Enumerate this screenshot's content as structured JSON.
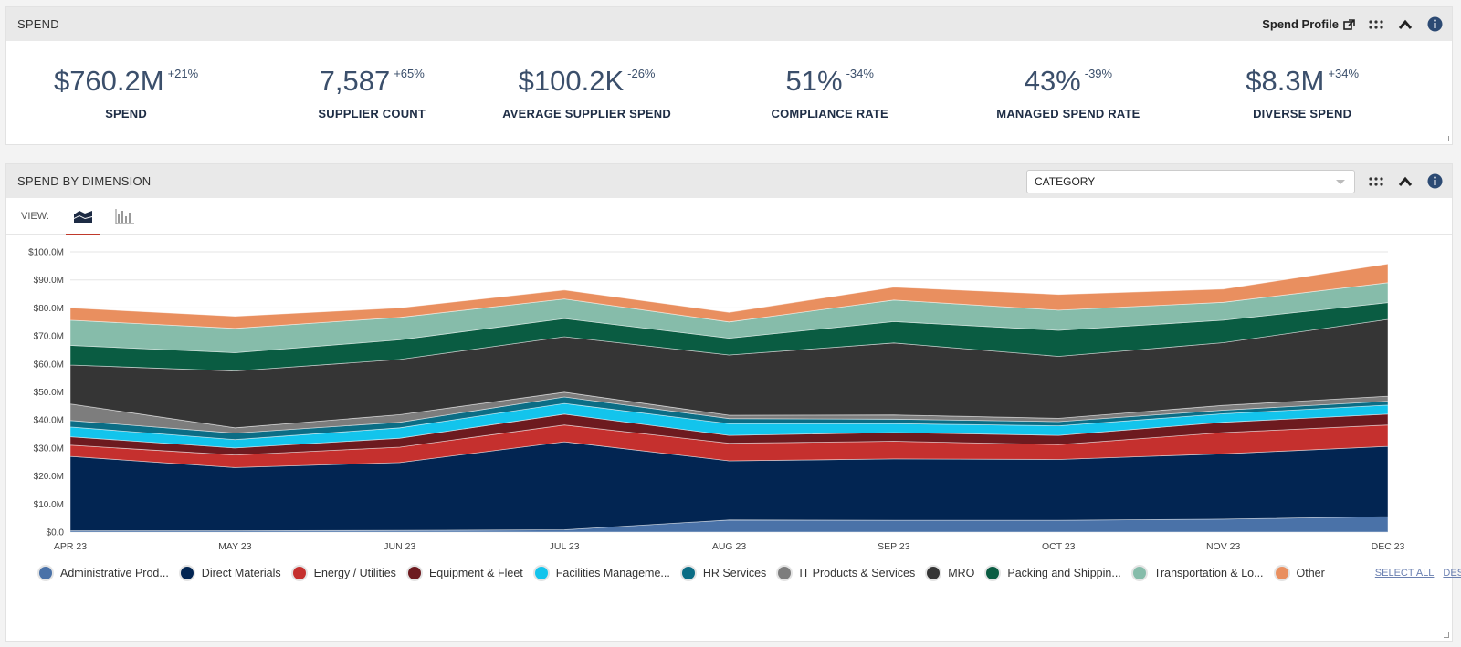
{
  "spend_panel": {
    "title": "SPEND",
    "profile_link": "Spend Profile",
    "kpis": [
      {
        "value": "$760.2M",
        "delta": "+21%",
        "label": "SPEND"
      },
      {
        "value": "7,587",
        "delta": "+65%",
        "label": "SUPPLIER COUNT"
      },
      {
        "value": "$100.2K",
        "delta": "-26%",
        "label": "AVERAGE SUPPLIER SPEND"
      },
      {
        "value": "51%",
        "delta": "-34%",
        "label": "COMPLIANCE RATE"
      },
      {
        "value": "43%",
        "delta": "-39%",
        "label": "MANAGED SPEND RATE"
      },
      {
        "value": "$8.3M",
        "delta": "+34%",
        "label": "DIVERSE SPEND"
      }
    ]
  },
  "dimension_panel": {
    "title": "SPEND BY DIMENSION",
    "dimension_select": "CATEGORY",
    "view_label": "VIEW:",
    "select_all": "SELECT ALL",
    "deselect_all": "DESELECT ALL"
  },
  "chart_data": {
    "type": "area",
    "stacked": true,
    "categories": [
      "APR 23",
      "MAY 23",
      "JUN 23",
      "JUL 23",
      "AUG 23",
      "SEP 23",
      "OCT 23",
      "NOV 23",
      "DEC 23"
    ],
    "ylim": [
      0,
      100
    ],
    "yticks": [
      "$0.0",
      "$10.0M",
      "$20.0M",
      "$30.0M",
      "$40.0M",
      "$50.0M",
      "$60.0M",
      "$70.0M",
      "$80.0M",
      "$90.0M",
      "$100.0M"
    ],
    "series": [
      {
        "name": "Administrative Prod...",
        "color": "#4a72a8",
        "values": [
          0.5,
          0.5,
          0.6,
          0.8,
          4.3,
          4.2,
          4.2,
          4.6,
          5.5
        ]
      },
      {
        "name": "Direct Materials",
        "color": "#022552",
        "values": [
          26.5,
          22.5,
          24.2,
          31.4,
          21.1,
          21.9,
          21.7,
          23.3,
          25.1
        ]
      },
      {
        "name": "Energy / Utilities",
        "color": "#c5302e",
        "values": [
          4.0,
          4.5,
          5.5,
          6.0,
          6.3,
          6.3,
          5.3,
          7.6,
          7.6
        ]
      },
      {
        "name": "Equipment & Fleet",
        "color": "#6d1a1f",
        "values": [
          3.0,
          2.5,
          3.2,
          3.9,
          2.8,
          3.1,
          3.3,
          3.7,
          3.9
        ]
      },
      {
        "name": "Facilities Manageme...",
        "color": "#13c4ec",
        "values": [
          3.5,
          3.0,
          3.7,
          3.8,
          4.2,
          3.2,
          3.4,
          3.0,
          3.2
        ]
      },
      {
        "name": "HR Services",
        "color": "#0b6d85",
        "values": [
          2.3,
          2.3,
          2.0,
          2.3,
          1.8,
          1.6,
          1.5,
          1.3,
          1.4
        ]
      },
      {
        "name": "IT Products & Services",
        "color": "#7d7d7d",
        "values": [
          5.9,
          1.9,
          2.7,
          1.7,
          1.2,
          1.5,
          1.2,
          1.7,
          1.8
        ]
      },
      {
        "name": "MRO",
        "color": "#353535",
        "values": [
          13.9,
          20.3,
          19.7,
          19.8,
          21.5,
          25.7,
          22.1,
          22.4,
          27.4
        ]
      },
      {
        "name": "Packing and Shippin...",
        "color": "#0a5c42",
        "values": [
          7.0,
          6.5,
          7.0,
          6.5,
          6.0,
          7.6,
          9.3,
          8.0,
          6.0
        ]
      },
      {
        "name": "Transportation & Lo...",
        "color": "#86bcaa",
        "values": [
          9.0,
          8.7,
          8.0,
          7.0,
          5.8,
          7.7,
          7.2,
          6.4,
          7.1
        ]
      },
      {
        "name": "Other",
        "color": "#e98f5f",
        "values": [
          4.4,
          4.3,
          3.4,
          3.2,
          3.4,
          4.6,
          5.6,
          4.7,
          6.7
        ]
      }
    ]
  }
}
